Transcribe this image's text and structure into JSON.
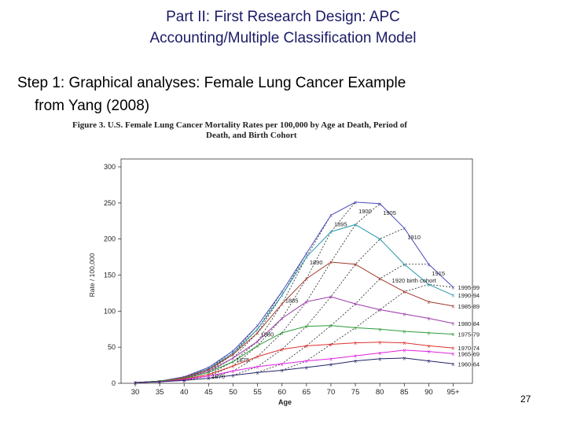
{
  "slide": {
    "title_line1": "Part II:  First Research Design: APC",
    "title_line2": "Accounting/Multiple Classification Model",
    "step_line1": "Step 1: Graphical analyses: Female Lung Cancer Example",
    "step_line2": "from Yang (2008)",
    "page_number": "27"
  },
  "figure": {
    "caption_line1": "Figure 3. U.S. Female Lung Cancer Mortality Rates per 100,000 by Age at Death, Period of",
    "caption_line2": "Death, and Birth Cohort"
  },
  "chart_data": {
    "type": "line",
    "xlabel": "Age",
    "ylabel": "Rate / 100,000",
    "categories": [
      "30",
      "35",
      "40",
      "45",
      "50",
      "55",
      "60",
      "65",
      "70",
      "75",
      "80",
      "85",
      "90",
      "95+"
    ],
    "ylim": [
      0,
      300
    ],
    "yticks": [
      0,
      50,
      100,
      150,
      200,
      250,
      300
    ],
    "grid": false,
    "series": [
      {
        "name": "1995-99",
        "color": "#4b4bbf",
        "marker": "x",
        "values": [
          1,
          3,
          9,
          22,
          45,
          80,
          127,
          180,
          233,
          251,
          249,
          215,
          165,
          133
        ]
      },
      {
        "name": "1990-94",
        "color": "#2a9aa8",
        "marker": "x",
        "values": [
          1,
          3,
          8,
          20,
          42,
          75,
          122,
          175,
          210,
          220,
          200,
          165,
          137,
          122
        ]
      },
      {
        "name": "1985-89",
        "color": "#a03a2a",
        "marker": "x",
        "values": [
          1,
          3,
          8,
          19,
          40,
          70,
          110,
          145,
          168,
          165,
          145,
          127,
          113,
          107
        ]
      },
      {
        "name": "1980-84",
        "color": "#9a3aa8",
        "marker": "x",
        "values": [
          1,
          3,
          7,
          17,
          35,
          58,
          90,
          113,
          120,
          110,
          102,
          96,
          90,
          83
        ]
      },
      {
        "name": "1975-79",
        "color": "#2e9a3a",
        "marker": "x",
        "values": [
          1,
          3,
          7,
          15,
          30,
          52,
          70,
          79,
          80,
          77,
          75,
          72,
          70,
          68
        ]
      },
      {
        "name": "1970-74",
        "color": "#e03030",
        "marker": "x",
        "values": [
          1,
          2,
          6,
          12,
          24,
          37,
          47,
          52,
          54,
          56,
          57,
          56,
          52,
          49
        ]
      },
      {
        "name": "1965-69",
        "color": "#e020e0",
        "marker": "x",
        "values": [
          1,
          2,
          5,
          10,
          17,
          23,
          27,
          31,
          34,
          38,
          42,
          46,
          44,
          41
        ]
      },
      {
        "name": "1960-64",
        "color": "#222266",
        "marker": "x",
        "values": [
          1,
          2,
          4,
          7,
          11,
          15,
          18,
          22,
          26,
          31,
          34,
          35,
          31,
          27
        ]
      }
    ],
    "cohort_labels": [
      "1920 birth cohort",
      "1915",
      "1910",
      "1905",
      "1900",
      "1895",
      "1890",
      "1885",
      "1880",
      "1875",
      "1870"
    ]
  }
}
